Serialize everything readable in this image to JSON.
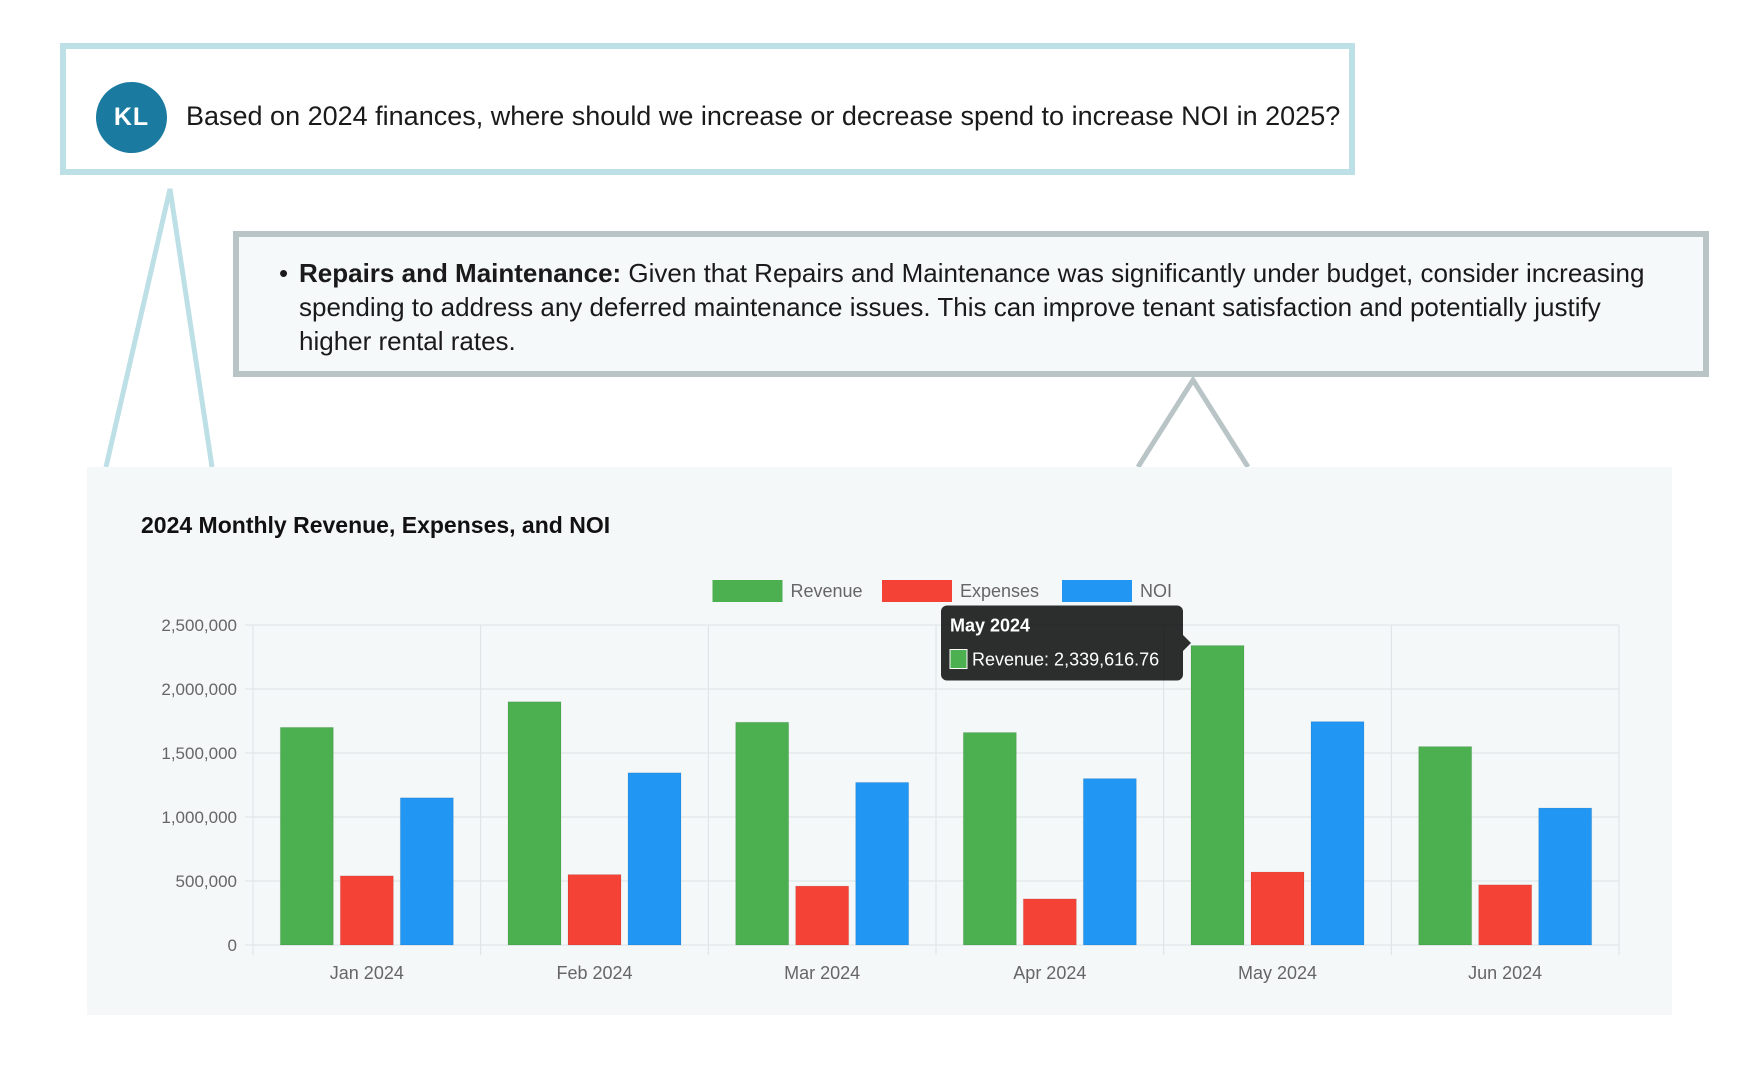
{
  "question": {
    "avatar_initials": "KL",
    "text": "Based on 2024 finances, where should we increase or decrease spend to increase NOI in 2025?"
  },
  "answer": {
    "term": "Repairs and Maintenance:",
    "body": " Given that Repairs and Maintenance was significantly under budget, consider increasing spending to address any deferred maintenance issues. This can improve tenant satisfaction and potentially justify higher rental rates."
  },
  "colors": {
    "revenue": "#4caf50",
    "expenses": "#f44336",
    "noi": "#2196f3",
    "question_border": "#bddfe6",
    "answer_border": "#b9c4c6"
  },
  "chart_data": {
    "type": "bar",
    "title": "2024 Monthly Revenue, Expenses, and NOI",
    "categories": [
      "Jan 2024",
      "Feb 2024",
      "Mar 2024",
      "Apr 2024",
      "May 2024",
      "Jun 2024"
    ],
    "series": [
      {
        "name": "Revenue",
        "values": [
          1700000,
          1900000,
          1740000,
          1660000,
          2339616.76,
          1550000
        ]
      },
      {
        "name": "Expenses",
        "values": [
          540000,
          550000,
          460000,
          360000,
          570000,
          470000
        ]
      },
      {
        "name": "NOI",
        "values": [
          1150000,
          1345000,
          1270000,
          1300000,
          1745000,
          1070000
        ]
      }
    ],
    "ylim": [
      0,
      2500000
    ],
    "yticks": [
      0,
      500000,
      1000000,
      1500000,
      2000000,
      2500000
    ],
    "ytick_labels": [
      "0",
      "500,000",
      "1,000,000",
      "1,500,000",
      "2,000,000",
      "2,500,000"
    ],
    "xlabel": "",
    "ylabel": "",
    "grid": true,
    "legend_position": "top",
    "tooltip": {
      "title": "May 2024",
      "text": "Revenue: 2,339,616.76",
      "category_index": 4,
      "series_index": 0
    }
  }
}
